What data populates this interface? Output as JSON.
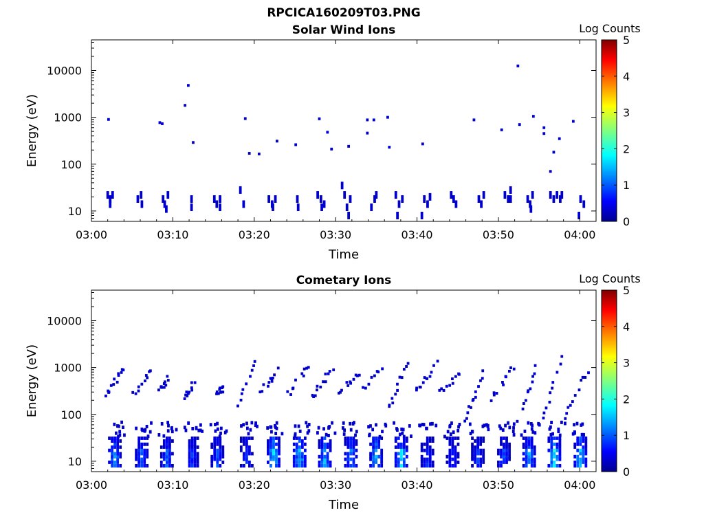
{
  "figure_title": "RPCICA160209T03.PNG",
  "chart_data": [
    {
      "type": "heatmap",
      "title": "Solar Wind Ions",
      "xlabel": "Time",
      "ylabel": "Energy (eV)",
      "yscale": "log",
      "xlim": [
        "03:00",
        "04:02"
      ],
      "ylim": [
        6,
        45000
      ],
      "x_ticks": [
        "03:00",
        "03:10",
        "03:20",
        "03:30",
        "03:40",
        "03:50",
        "04:00"
      ],
      "y_ticks": [
        "10",
        "100",
        "1000",
        "10000"
      ],
      "y_tick_values": [
        10,
        100,
        1000,
        10000
      ],
      "colorbar": {
        "label": "Log Counts",
        "range": [
          0,
          5
        ],
        "ticks": [
          "0",
          "1",
          "2",
          "3",
          "4",
          "5"
        ],
        "colormap": "jet"
      },
      "points": [
        {
          "t": 2.0,
          "e": 22,
          "v": 0.3
        },
        {
          "t": 2.3,
          "e": 18,
          "v": 0.3
        },
        {
          "t": 2.6,
          "e": 22,
          "v": 0.3
        },
        {
          "t": 2.3,
          "e": 14,
          "v": 0.3
        },
        {
          "t": 2.1,
          "e": 900,
          "v": 0.3
        },
        {
          "t": 5.7,
          "e": 18,
          "v": 0.3
        },
        {
          "t": 6.1,
          "e": 22,
          "v": 0.3
        },
        {
          "t": 6.2,
          "e": 14,
          "v": 0.3
        },
        {
          "t": 8.4,
          "e": 770,
          "v": 0.3
        },
        {
          "t": 8.7,
          "e": 730,
          "v": 0.3
        },
        {
          "t": 8.8,
          "e": 18,
          "v": 0.3
        },
        {
          "t": 9.0,
          "e": 14,
          "v": 0.3
        },
        {
          "t": 9.4,
          "e": 22,
          "v": 0.3
        },
        {
          "t": 9.2,
          "e": 11,
          "v": 0.3
        },
        {
          "t": 11.5,
          "e": 1800,
          "v": 0.3
        },
        {
          "t": 11.9,
          "e": 4800,
          "v": 0.3
        },
        {
          "t": 12.5,
          "e": 290,
          "v": 0.3
        },
        {
          "t": 12.3,
          "e": 18,
          "v": 0.3
        },
        {
          "t": 12.3,
          "e": 12,
          "v": 0.3
        },
        {
          "t": 15.1,
          "e": 18,
          "v": 0.3
        },
        {
          "t": 15.4,
          "e": 14,
          "v": 0.3
        },
        {
          "t": 15.8,
          "e": 18,
          "v": 0.3
        },
        {
          "t": 15.8,
          "e": 12,
          "v": 0.3
        },
        {
          "t": 18.3,
          "e": 28,
          "v": 0.3
        },
        {
          "t": 18.7,
          "e": 14,
          "v": 0.3
        },
        {
          "t": 18.9,
          "e": 940,
          "v": 0.3
        },
        {
          "t": 19.4,
          "e": 170,
          "v": 0.3
        },
        {
          "t": 20.6,
          "e": 165,
          "v": 0.3
        },
        {
          "t": 21.8,
          "e": 18,
          "v": 0.3
        },
        {
          "t": 22.2,
          "e": 14,
          "v": 0.3
        },
        {
          "t": 22.6,
          "e": 18,
          "v": 0.3
        },
        {
          "t": 22.3,
          "e": 12,
          "v": 0.3
        },
        {
          "t": 22.8,
          "e": 310,
          "v": 0.3
        },
        {
          "t": 25.1,
          "e": 260,
          "v": 0.3
        },
        {
          "t": 25.3,
          "e": 18,
          "v": 0.3
        },
        {
          "t": 25.4,
          "e": 12,
          "v": 0.3
        },
        {
          "t": 28.0,
          "e": 930,
          "v": 0.3
        },
        {
          "t": 29.0,
          "e": 480,
          "v": 0.3
        },
        {
          "t": 29.5,
          "e": 210,
          "v": 0.3
        },
        {
          "t": 27.8,
          "e": 22,
          "v": 0.3
        },
        {
          "t": 28.2,
          "e": 18,
          "v": 0.3
        },
        {
          "t": 28.6,
          "e": 14,
          "v": 0.3
        },
        {
          "t": 28.3,
          "e": 12,
          "v": 0.3
        },
        {
          "t": 30.8,
          "e": 35,
          "v": 0.3
        },
        {
          "t": 31.1,
          "e": 22,
          "v": 0.3
        },
        {
          "t": 31.4,
          "e": 12,
          "v": 0.3
        },
        {
          "t": 31.8,
          "e": 18,
          "v": 0.3
        },
        {
          "t": 31.6,
          "e": 8,
          "v": 0.3
        },
        {
          "t": 31.6,
          "e": 240,
          "v": 0.3
        },
        {
          "t": 33.9,
          "e": 880,
          "v": 0.3
        },
        {
          "t": 33.9,
          "e": 460,
          "v": 0.3
        },
        {
          "t": 34.7,
          "e": 880,
          "v": 0.3
        },
        {
          "t": 34.4,
          "e": 12,
          "v": 0.3
        },
        {
          "t": 34.8,
          "e": 18,
          "v": 0.3
        },
        {
          "t": 35.0,
          "e": 22,
          "v": 0.3
        },
        {
          "t": 36.4,
          "e": 1000,
          "v": 0.3
        },
        {
          "t": 36.6,
          "e": 230,
          "v": 0.3
        },
        {
          "t": 37.4,
          "e": 22,
          "v": 0.3
        },
        {
          "t": 37.8,
          "e": 14,
          "v": 0.3
        },
        {
          "t": 38.2,
          "e": 18,
          "v": 0.3
        },
        {
          "t": 37.6,
          "e": 8,
          "v": 0.3
        },
        {
          "t": 40.7,
          "e": 270,
          "v": 0.3
        },
        {
          "t": 40.9,
          "e": 18,
          "v": 0.3
        },
        {
          "t": 41.3,
          "e": 14,
          "v": 0.3
        },
        {
          "t": 41.6,
          "e": 20,
          "v": 0.3
        },
        {
          "t": 40.6,
          "e": 8,
          "v": 0.3
        },
        {
          "t": 44.2,
          "e": 22,
          "v": 0.3
        },
        {
          "t": 44.5,
          "e": 18,
          "v": 0.3
        },
        {
          "t": 44.8,
          "e": 14,
          "v": 0.3
        },
        {
          "t": 47.0,
          "e": 880,
          "v": 0.3
        },
        {
          "t": 47.6,
          "e": 18,
          "v": 0.3
        },
        {
          "t": 47.9,
          "e": 14,
          "v": 0.3
        },
        {
          "t": 48.2,
          "e": 22,
          "v": 0.3
        },
        {
          "t": 50.4,
          "e": 540,
          "v": 0.3
        },
        {
          "t": 50.8,
          "e": 22,
          "v": 0.3
        },
        {
          "t": 51.2,
          "e": 18,
          "v": 0.3
        },
        {
          "t": 51.5,
          "e": 28,
          "v": 0.3
        },
        {
          "t": 51.5,
          "e": 18,
          "v": 0.3
        },
        {
          "t": 52.4,
          "e": 12500,
          "v": 0.3
        },
        {
          "t": 52.6,
          "e": 700,
          "v": 0.3
        },
        {
          "t": 53.6,
          "e": 18,
          "v": 0.3
        },
        {
          "t": 53.9,
          "e": 14,
          "v": 0.3
        },
        {
          "t": 54.2,
          "e": 22,
          "v": 0.3
        },
        {
          "t": 54.0,
          "e": 11,
          "v": 0.3
        },
        {
          "t": 54.3,
          "e": 1050,
          "v": 0.3
        },
        {
          "t": 55.6,
          "e": 600,
          "v": 0.3
        },
        {
          "t": 55.6,
          "e": 450,
          "v": 0.3
        },
        {
          "t": 56.4,
          "e": 70,
          "v": 0.3
        },
        {
          "t": 56.8,
          "e": 180,
          "v": 0.3
        },
        {
          "t": 57.5,
          "e": 350,
          "v": 0.3
        },
        {
          "t": 56.4,
          "e": 22,
          "v": 0.3
        },
        {
          "t": 56.8,
          "e": 18,
          "v": 0.3
        },
        {
          "t": 57.2,
          "e": 22,
          "v": 0.3
        },
        {
          "t": 57.6,
          "e": 18,
          "v": 0.3
        },
        {
          "t": 57.8,
          "e": 22,
          "v": 0.3
        },
        {
          "t": 59.2,
          "e": 820,
          "v": 0.3
        },
        {
          "t": 60.1,
          "e": 18,
          "v": 0.3
        },
        {
          "t": 60.5,
          "e": 14,
          "v": 0.3
        },
        {
          "t": 59.9,
          "e": 8,
          "v": 0.3
        }
      ]
    },
    {
      "type": "heatmap",
      "title": "Cometary Ions",
      "xlabel": "Time",
      "ylabel": "Energy (eV)",
      "yscale": "log",
      "xlim": [
        "03:00",
        "04:02"
      ],
      "ylim": [
        6,
        45000
      ],
      "x_ticks": [
        "03:00",
        "03:10",
        "03:20",
        "03:30",
        "03:40",
        "03:50",
        "04:00"
      ],
      "y_ticks": [
        "10",
        "100",
        "1000",
        "10000"
      ],
      "y_tick_values": [
        10,
        100,
        1000,
        10000
      ],
      "colorbar": {
        "label": "Log Counts",
        "range": [
          0,
          5
        ],
        "ticks": [
          "0",
          "1",
          "2",
          "3",
          "4",
          "5"
        ],
        "colormap": "jet"
      },
      "cluster_starts": [
        2.2,
        5.5,
        8.6,
        11.7,
        14.8,
        18.4,
        21.7,
        24.9,
        28.0,
        31.2,
        34.3,
        37.4,
        40.6,
        43.7,
        46.8,
        50.0,
        53.1,
        56.2,
        59.4
      ],
      "cluster_peaks": [
        1.3,
        1.0,
        1.0,
        0.8,
        0.9,
        0.8,
        1.6,
        1.6,
        1.4,
        1.2,
        1.5,
        1.6,
        0.7,
        0.7,
        0.8,
        0.9,
        1.3,
        1.8,
        1.5
      ],
      "dispersion_tracks": [
        {
          "t0": 1.8,
          "t1": 3.9,
          "e0": 250,
          "e1": 950
        },
        {
          "t0": 5.2,
          "t1": 7.4,
          "e0": 280,
          "e1": 900
        },
        {
          "t0": 8.3,
          "t1": 9.4,
          "e0": 300,
          "e1": 600
        },
        {
          "t0": 11.3,
          "t1": 12.6,
          "e0": 200,
          "e1": 500
        },
        {
          "t0": 15.0,
          "t1": 16.2,
          "e0": 300,
          "e1": 350
        },
        {
          "t0": 17.5,
          "t1": 20.1,
          "e0": 90,
          "e1": 1200
        },
        {
          "t0": 20.8,
          "t1": 22.9,
          "e0": 300,
          "e1": 900
        },
        {
          "t0": 24.0,
          "t1": 26.6,
          "e0": 240,
          "e1": 1050
        },
        {
          "t0": 27.1,
          "t1": 29.6,
          "e0": 230,
          "e1": 1050
        },
        {
          "t0": 30.3,
          "t1": 32.8,
          "e0": 300,
          "e1": 750
        },
        {
          "t0": 33.4,
          "t1": 35.6,
          "e0": 330,
          "e1": 950
        },
        {
          "t0": 36.3,
          "t1": 38.8,
          "e0": 110,
          "e1": 1150
        },
        {
          "t0": 39.8,
          "t1": 42.6,
          "e0": 330,
          "e1": 1200
        },
        {
          "t0": 42.8,
          "t1": 45.2,
          "e0": 300,
          "e1": 700
        },
        {
          "t0": 45.9,
          "t1": 48.1,
          "e0": 80,
          "e1": 750
        },
        {
          "t0": 49.2,
          "t1": 51.8,
          "e0": 200,
          "e1": 1050
        },
        {
          "t0": 52.4,
          "t1": 54.8,
          "e0": 70,
          "e1": 1250
        },
        {
          "t0": 55.4,
          "t1": 57.9,
          "e0": 80,
          "e1": 1800
        },
        {
          "t0": 58.2,
          "t1": 61.2,
          "e0": 90,
          "e1": 1000
        }
      ]
    }
  ]
}
